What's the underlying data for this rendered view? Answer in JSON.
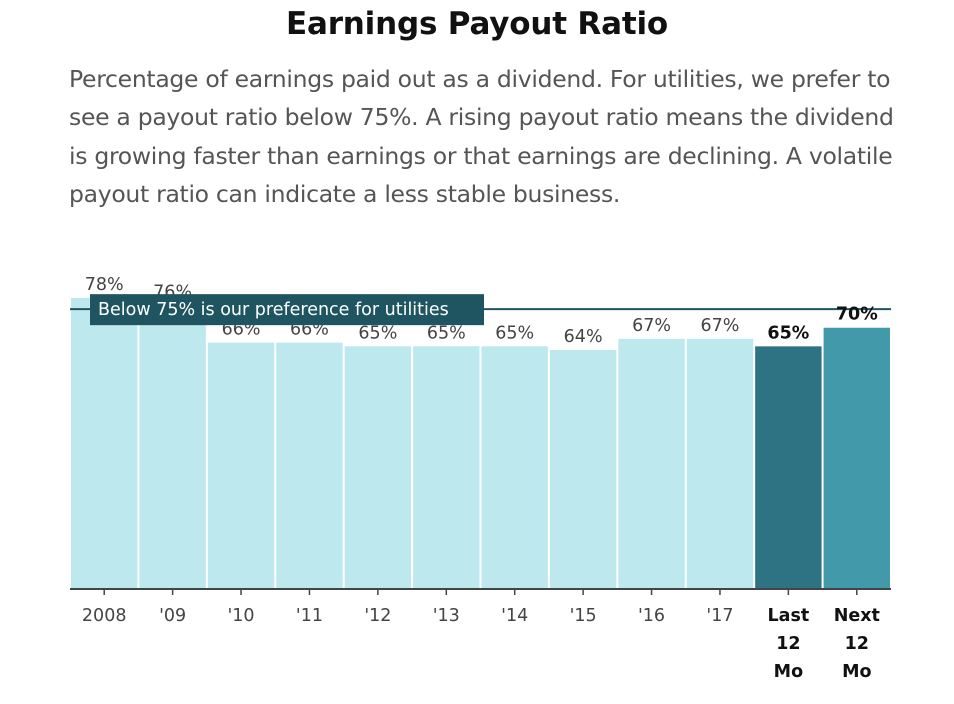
{
  "header": {
    "title": "Earnings Payout Ratio",
    "description": "Percentage of earnings paid out as a dividend. For utilities, we prefer to see a payout ratio below 75%. A rising payout ratio means the dividend is growing faster than earnings or that earnings are declining. A volatile payout ratio can indicate a less stable business."
  },
  "chart_data": {
    "type": "bar",
    "categories": [
      "2008",
      "'09",
      "'10",
      "'11",
      "'12",
      "'13",
      "'14",
      "'15",
      "'16",
      "'17",
      "Last 12 Mo",
      "Next 12 Mo"
    ],
    "values": [
      78,
      76,
      66,
      66,
      65,
      65,
      65,
      64,
      67,
      67,
      65,
      70
    ],
    "value_labels": [
      "78%",
      "76%",
      "66%",
      "66%",
      "65%",
      "65%",
      "65%",
      "64%",
      "67%",
      "67%",
      "65%",
      "70%"
    ],
    "highlighted": [
      false,
      false,
      false,
      false,
      false,
      false,
      false,
      false,
      false,
      false,
      true,
      true
    ],
    "ylim": [
      0,
      78
    ],
    "reference_line": {
      "value": 75,
      "label": "Below 75% is our preference for utilities"
    },
    "colors": {
      "bar": "#bce8ee",
      "bar_last": "#2e7384",
      "bar_next": "#4299aa",
      "reference": "#1e5560",
      "axis": "#444444"
    },
    "grid": false
  }
}
